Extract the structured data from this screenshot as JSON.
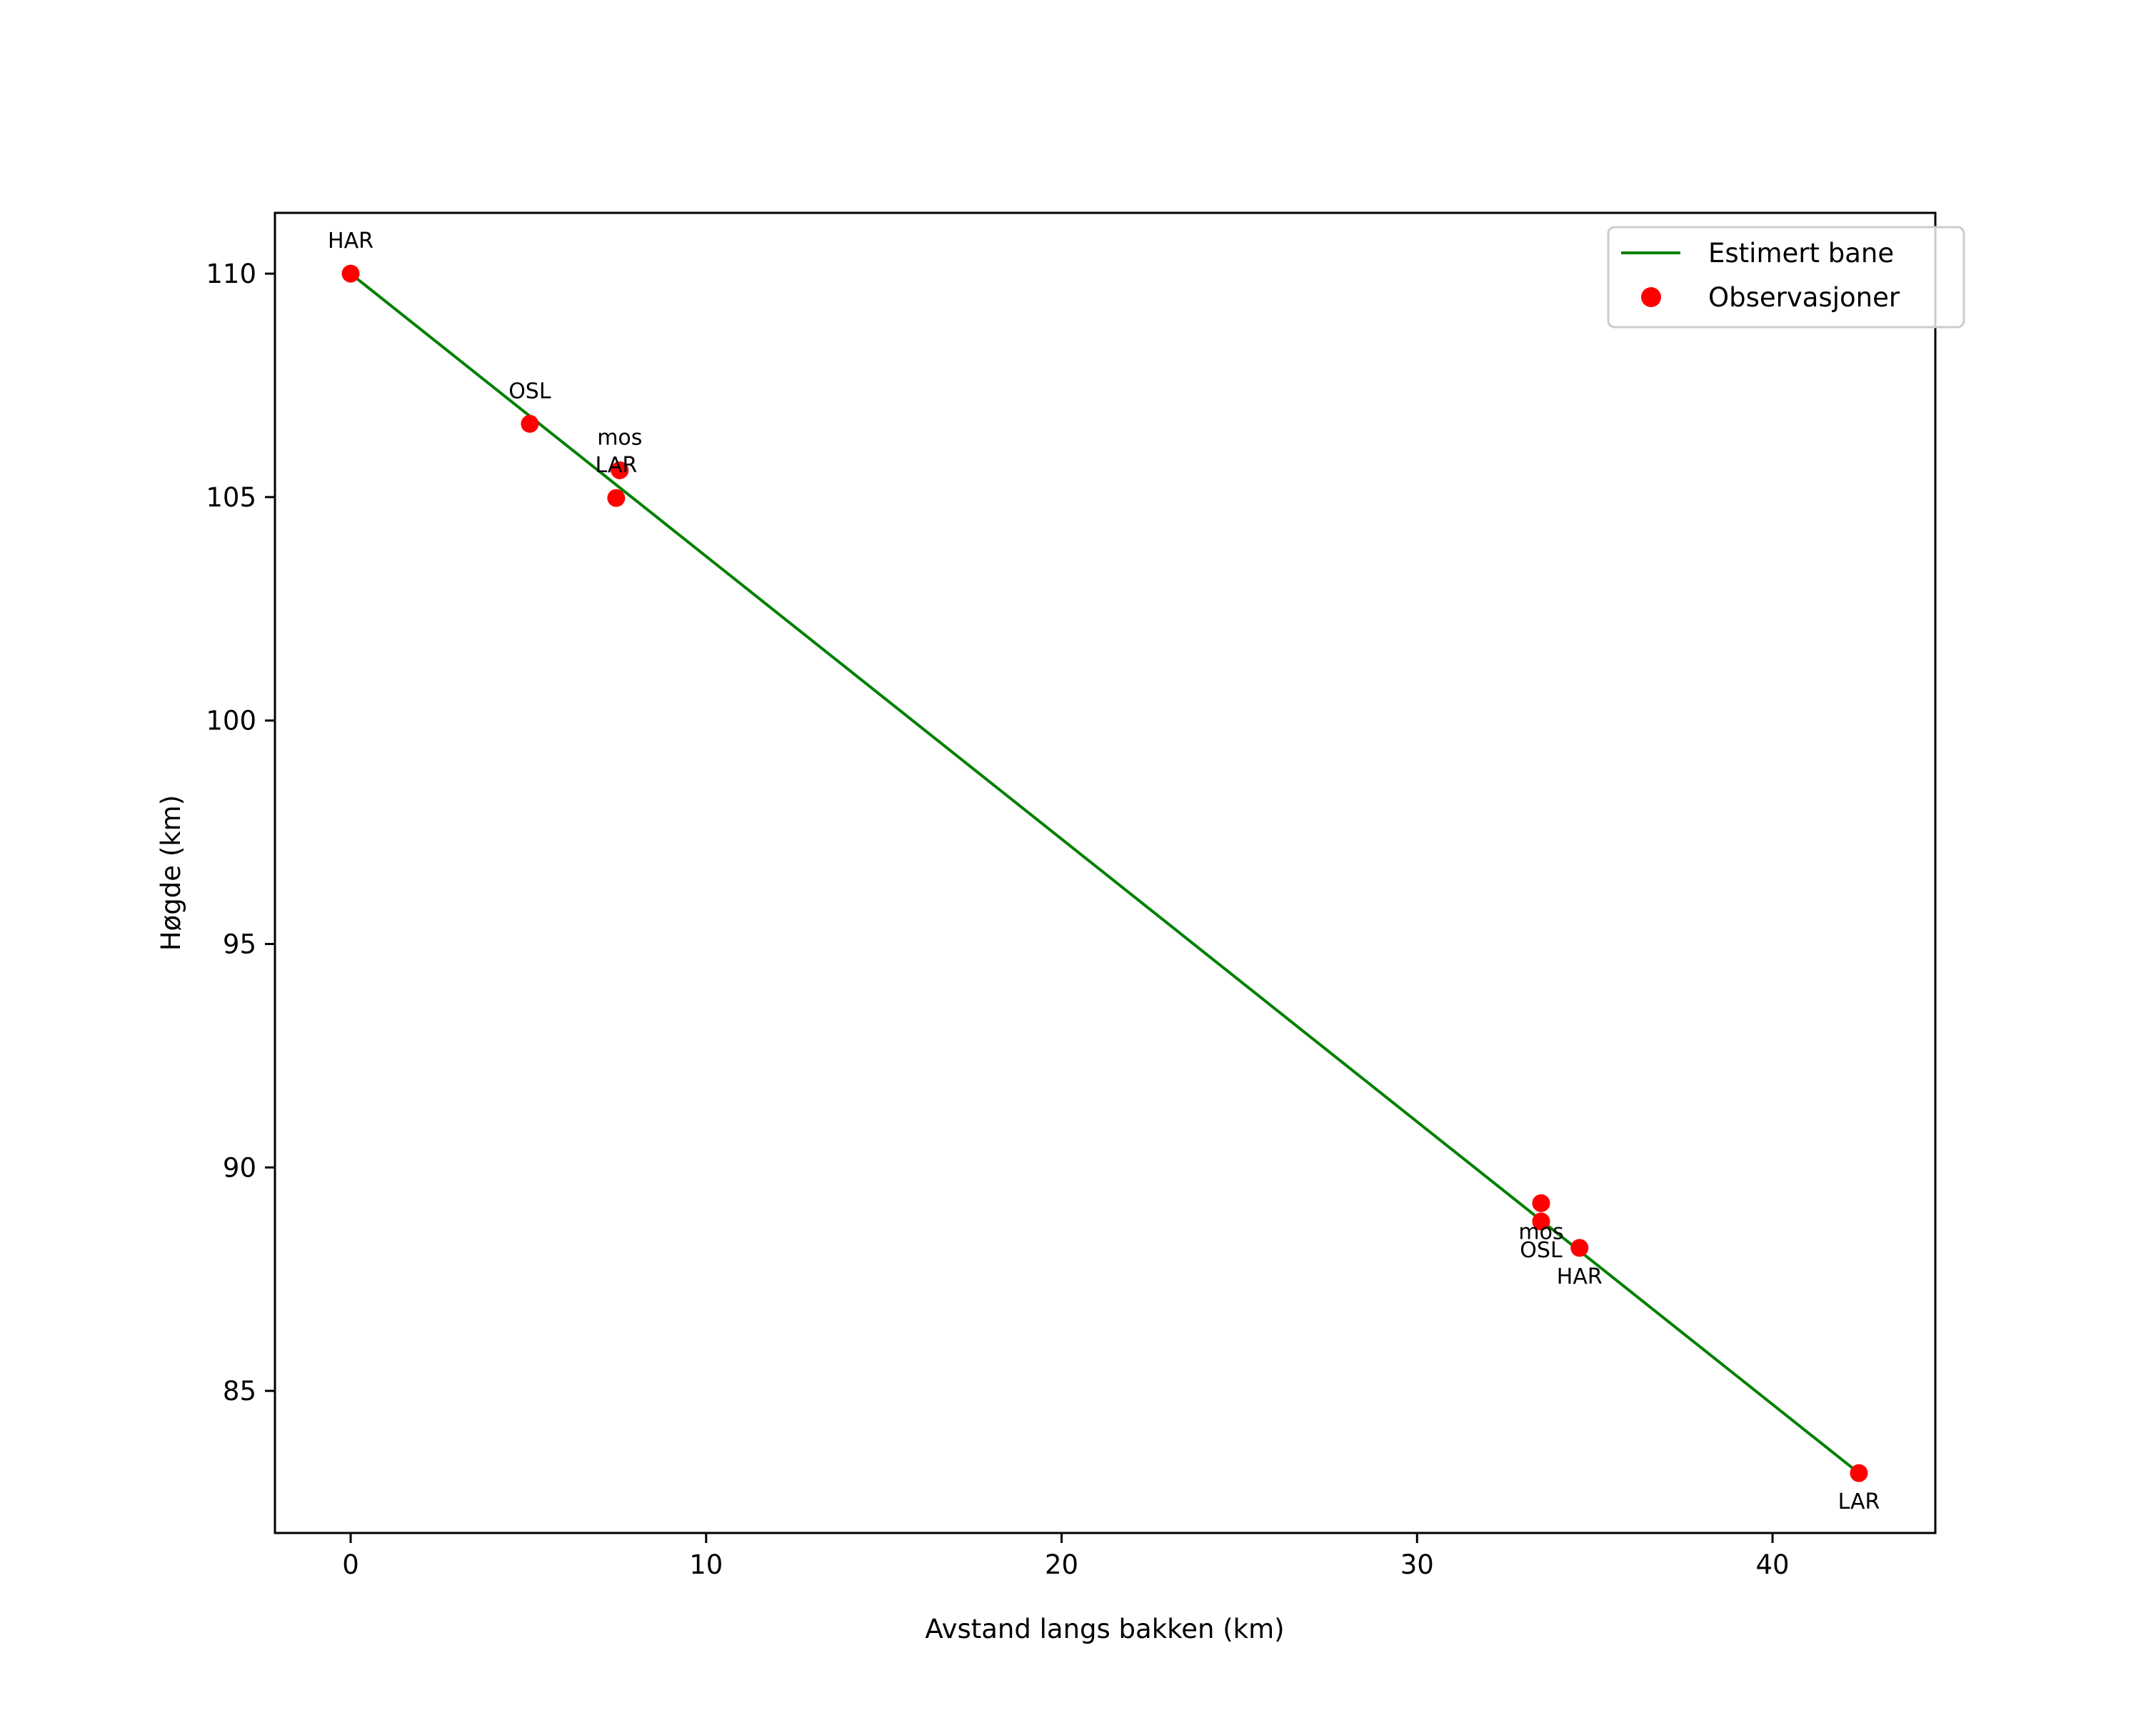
{
  "chart_data": {
    "type": "line",
    "title": "",
    "xlabel": "Avstand langs bakken (km)",
    "ylabel": "Høgde (km)",
    "xlim": [
      -2.13,
      44.58
    ],
    "ylim": [
      81.82,
      111.36
    ],
    "grid": false,
    "legend_position": "upper right",
    "xticks": [
      0,
      10,
      20,
      30,
      40
    ],
    "yticks": [
      85,
      90,
      95,
      100,
      105,
      110
    ],
    "series": [
      {
        "name": "Estimert bane",
        "kind": "line",
        "color": "#008000",
        "x": [
          0.0,
          42.43
        ],
        "y": [
          110.0,
          83.16
        ]
      },
      {
        "name": "Observasjoner",
        "kind": "scatter",
        "color": "#ff0000",
        "points": [
          {
            "label": "HAR",
            "x": 0.0,
            "y": 110.0,
            "label_pos": "above"
          },
          {
            "label": "OSL",
            "x": 5.04,
            "y": 106.64,
            "label_pos": "above"
          },
          {
            "label": "mos",
            "x": 7.57,
            "y": 105.6,
            "label_pos": "above"
          },
          {
            "label": "LAR",
            "x": 7.47,
            "y": 104.98,
            "label_pos": "above"
          },
          {
            "label": "mos",
            "x": 33.49,
            "y": 89.2,
            "label_pos": "below"
          },
          {
            "label": "OSL",
            "x": 33.49,
            "y": 88.79,
            "label_pos": "below"
          },
          {
            "label": "HAR",
            "x": 34.57,
            "y": 88.2,
            "label_pos": "below"
          },
          {
            "label": "LAR",
            "x": 42.43,
            "y": 83.16,
            "label_pos": "below"
          }
        ]
      }
    ]
  },
  "legend": {
    "items": [
      {
        "label": "Estimert bane",
        "marker": "line",
        "color": "#008000"
      },
      {
        "label": "Observasjoner",
        "marker": "dot",
        "color": "#ff0000"
      }
    ]
  }
}
